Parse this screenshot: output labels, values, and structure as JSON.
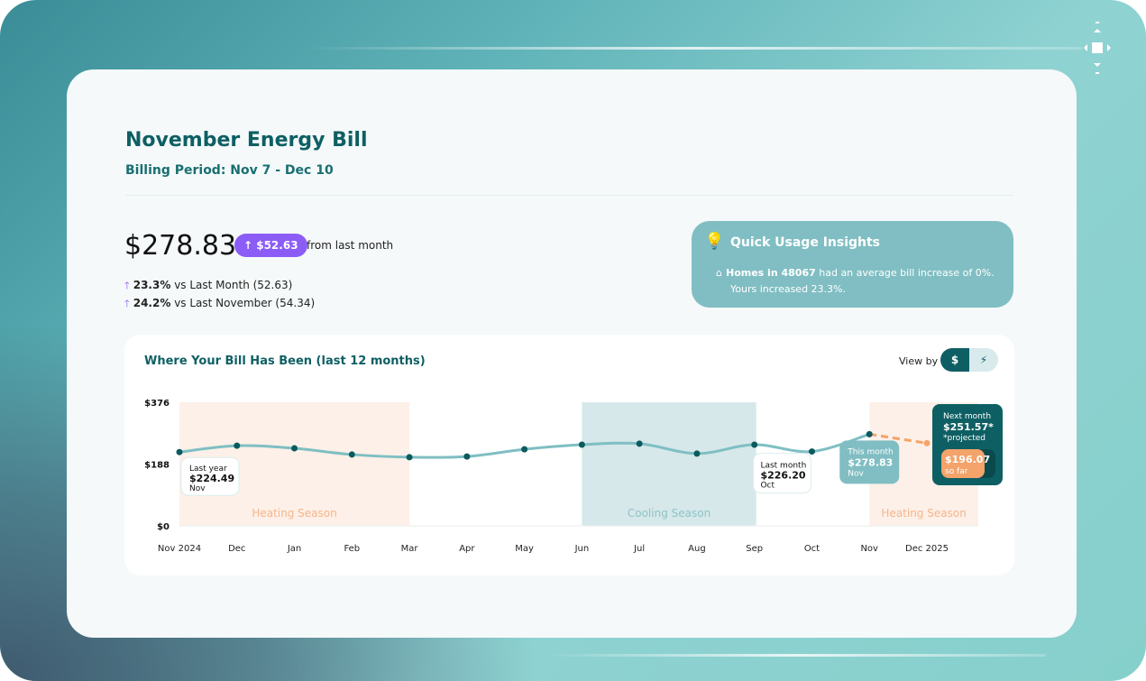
{
  "header": {
    "title": "November Energy Bill",
    "billing_period": "Billing Period: Nov 7 - Dec 10"
  },
  "summary": {
    "amount": "$278.83",
    "change_badge": "$52.63",
    "change_suffix": "from last month",
    "comparisons": [
      {
        "pct": "23.3%",
        "text": "vs Last Month (52.63)"
      },
      {
        "pct": "24.2%",
        "text": "vs Last November (54.34)"
      }
    ]
  },
  "insights": {
    "title": "Quick Usage Insights",
    "highlight": "Homes in 48067",
    "text": " had an average bill increase of 0%. Yours increased 23.3%.",
    "icon": "lightbulb-sparkle-icon"
  },
  "chart": {
    "title": "Where Your Bill Has Been (last 12 months)",
    "view_by_label": "View by",
    "toggle": [
      {
        "label": "$",
        "icon": "dollar-icon",
        "active": true
      },
      {
        "label": "⚡",
        "icon": "lightning-icon",
        "active": false
      }
    ]
  },
  "chart_data": {
    "type": "line",
    "x": [
      "Nov 2024",
      "Dec",
      "Jan",
      "Feb",
      "Mar",
      "Apr",
      "May",
      "Jun",
      "Jul",
      "Aug",
      "Sep",
      "Oct",
      "Nov",
      "Dec 2025"
    ],
    "values": [
      224.49,
      244,
      236,
      217,
      209,
      211,
      233,
      247,
      250,
      220,
      247,
      226.2,
      278.83,
      251.57
    ],
    "projected_from_index": 12,
    "ylim": [
      0,
      376
    ],
    "yticks": [
      "$0",
      "$188",
      "$376"
    ],
    "seasons": [
      {
        "label": "Heating Season",
        "from": "Nov 2024",
        "to": "Mar",
        "color": "#fdf0e8"
      },
      {
        "label": "Cooling Season",
        "from": "Jun",
        "to": "Sep",
        "color": "#d6e8ea"
      },
      {
        "label": "Heating Season",
        "from": "Nov",
        "to": "Dec 2025",
        "color": "#fdf0e8"
      }
    ],
    "callouts": {
      "last_year": {
        "title": "Last year",
        "value": "$224.49",
        "month": "Nov"
      },
      "last_month": {
        "title": "Last month",
        "value": "$226.20",
        "month": "Oct"
      },
      "this_month": {
        "title": "This month",
        "value": "$278.83",
        "month": "Nov"
      },
      "next_month": {
        "title": "Next month",
        "value": "$251.57*",
        "note": "*projected",
        "so_far_value": "$196.07",
        "so_far_label": "so far"
      }
    },
    "colors": {
      "line": "#7fbfc3",
      "point": "#0b5a5e",
      "projected": "#f4a36a",
      "primary": "#0e5f63",
      "accent": "#8b5cf6"
    }
  }
}
